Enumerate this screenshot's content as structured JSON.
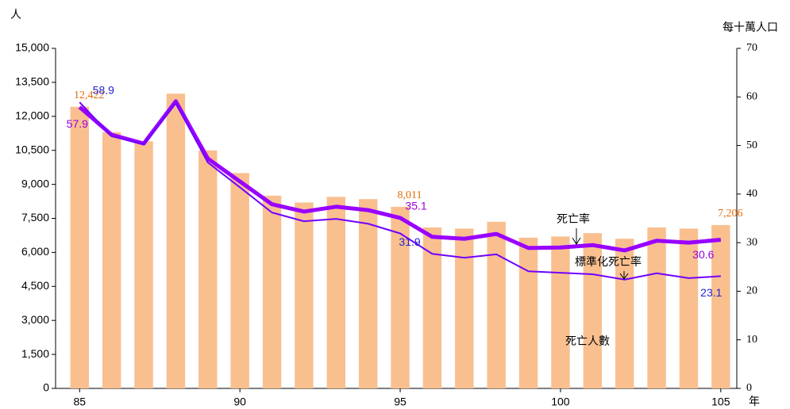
{
  "chart_data": {
    "type": "bar-line",
    "y_label": "人",
    "y2_label": "每十萬人口",
    "x_label": "年",
    "x": [
      85,
      86,
      87,
      88,
      89,
      90,
      91,
      92,
      93,
      94,
      95,
      96,
      97,
      98,
      99,
      100,
      101,
      102,
      103,
      104,
      105
    ],
    "xlim": [
      84.25,
      105.5
    ],
    "xticks": [
      85,
      90,
      95,
      100,
      105
    ],
    "ylim": [
      0,
      15000
    ],
    "yticks": [
      0,
      {
        "value": 1500,
        "label": "1,500"
      },
      {
        "value": 3000,
        "label": "3,000"
      },
      {
        "value": 4500,
        "label": "4,500"
      },
      {
        "value": 6000,
        "label": "6,000"
      },
      {
        "value": 7500,
        "label": "7,500"
      },
      {
        "value": 9000,
        "label": "9,000"
      },
      {
        "value": 10500,
        "label": "10,500"
      },
      {
        "value": 12000,
        "label": "12,000"
      },
      {
        "value": 13500,
        "label": "13,500"
      },
      {
        "value": 15000,
        "label": "15,000"
      }
    ],
    "y2lim": [
      0,
      70
    ],
    "y2ticks": [
      0,
      10,
      20,
      30,
      40,
      50,
      60,
      70
    ],
    "series": [
      {
        "name": "死亡人數",
        "type": "bar",
        "color": "#f9bf8f",
        "label_color": "#e46c0a",
        "values": [
          12422,
          11300,
          10900,
          13000,
          10500,
          9500,
          8500,
          8200,
          8450,
          8350,
          8011,
          7100,
          7050,
          7350,
          6650,
          6700,
          6850,
          6600,
          7100,
          7050,
          7206
        ],
        "value_labels": [
          "12,422",
          null,
          null,
          null,
          null,
          null,
          null,
          null,
          null,
          null,
          "8,011",
          null,
          null,
          null,
          null,
          null,
          null,
          null,
          null,
          null,
          "7,206"
        ]
      },
      {
        "name": "死亡率",
        "type": "line",
        "axis": "y2",
        "color": "#9900ff",
        "label_color": "#9900dd",
        "values": [
          57.9,
          52.2,
          50.4,
          59.1,
          47.3,
          42.6,
          37.9,
          36.4,
          37.4,
          36.7,
          35.1,
          31.2,
          30.8,
          31.8,
          28.9,
          29.0,
          29.5,
          28.4,
          30.4,
          30.0,
          30.6
        ],
        "value_labels": [
          "57.9",
          null,
          null,
          null,
          null,
          null,
          null,
          null,
          null,
          null,
          "35.1",
          null,
          null,
          null,
          null,
          null,
          null,
          null,
          null,
          null,
          "30.6"
        ]
      },
      {
        "name": "標準化死亡率",
        "type": "line",
        "axis": "y2",
        "color": "#7000ff",
        "label_color": "#2222cc",
        "values": [
          58.9,
          51.9,
          50.3,
          58.7,
          46.5,
          41.4,
          36.2,
          34.4,
          34.9,
          33.9,
          31.9,
          27.7,
          26.9,
          27.6,
          24.1,
          23.8,
          23.5,
          22.4,
          23.7,
          22.7,
          23.1
        ],
        "value_labels": [
          "58.9",
          null,
          null,
          null,
          null,
          null,
          null,
          null,
          null,
          null,
          "31.9",
          null,
          null,
          null,
          null,
          null,
          null,
          null,
          null,
          null,
          "23.1"
        ]
      }
    ]
  }
}
